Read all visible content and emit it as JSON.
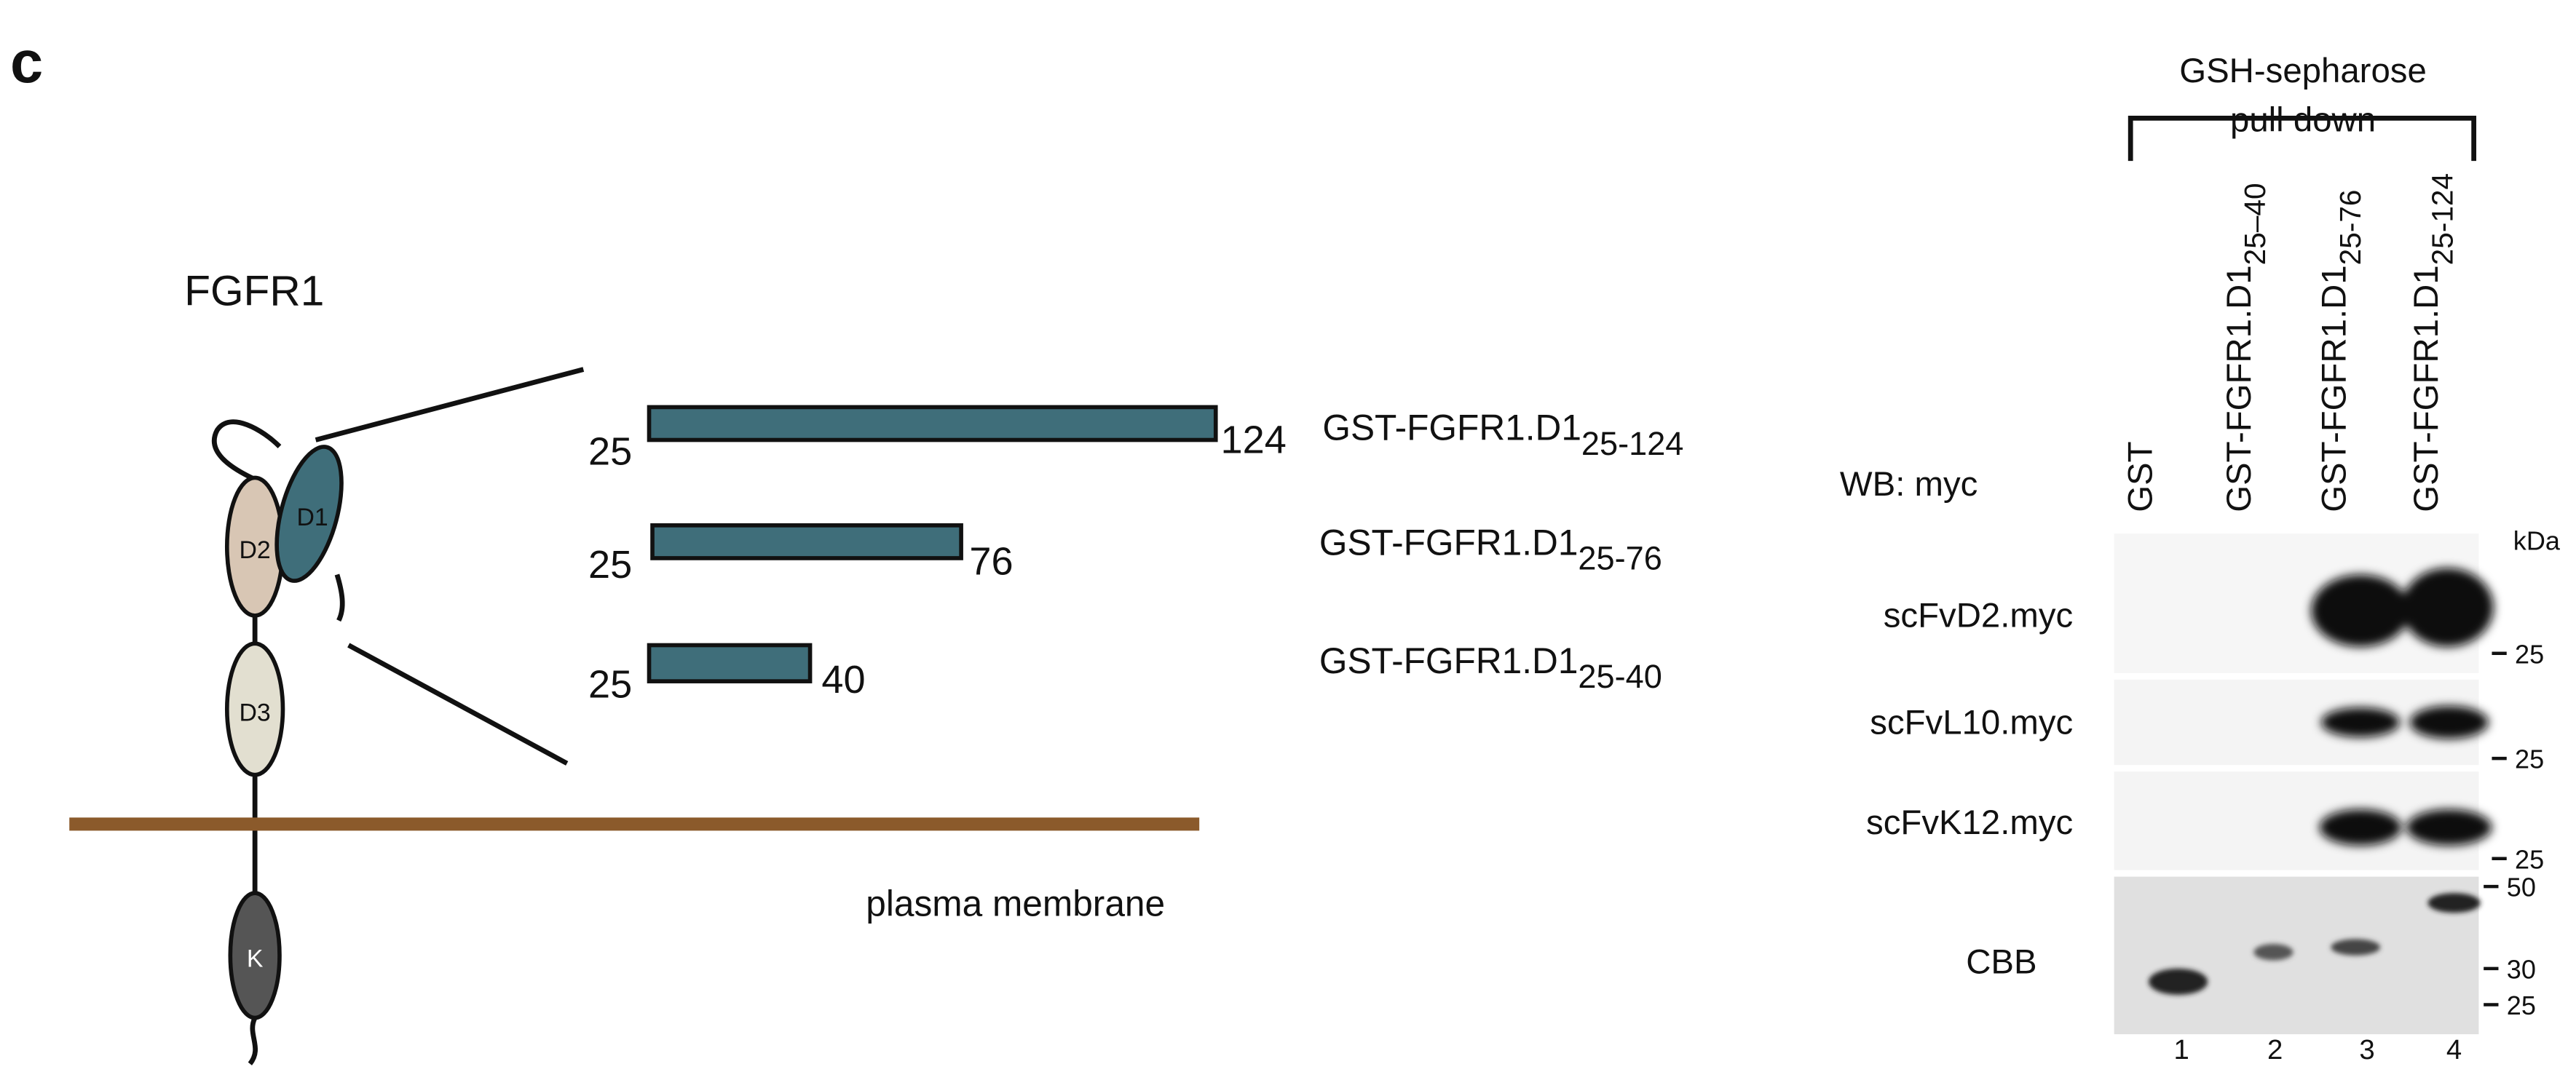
{
  "panel_label": "c",
  "protein": "FGFR1",
  "domains": [
    "D2",
    "D1",
    "D3",
    "K"
  ],
  "membrane_label": "plasma membrane",
  "constructs": [
    {
      "start": 25,
      "end": 124,
      "name": "GST-FGFR1.D1",
      "subscript": "25-124"
    },
    {
      "start": 25,
      "end": 76,
      "name": "GST-FGFR1.D1",
      "subscript": "25-76"
    },
    {
      "start": 25,
      "end": 40,
      "name": "GST-FGFR1.D1",
      "subscript": "25-40"
    }
  ],
  "blot": {
    "header": [
      "GSH-sepharose",
      "pull down"
    ],
    "probe": "WB: myc",
    "lanes": [
      {
        "name": "GST"
      },
      {
        "name": "GST-FGFR1.D1",
        "subscript": "25–40"
      },
      {
        "name": "GST-FGFR1.D1",
        "subscript": "25-76"
      },
      {
        "name": "GST-FGFR1.D1",
        "subscript": "25-124"
      }
    ],
    "unit": "kDa",
    "rows": [
      {
        "label": "scFvD2.myc",
        "markers": [
          25
        ]
      },
      {
        "label": "scFvL10.myc",
        "markers": [
          25
        ]
      },
      {
        "label": "scFvK12.myc",
        "markers": [
          25
        ]
      },
      {
        "label": "CBB",
        "markers": [
          50,
          30,
          25
        ]
      }
    ],
    "lane_numbers": [
      1,
      2,
      3,
      4
    ]
  }
}
